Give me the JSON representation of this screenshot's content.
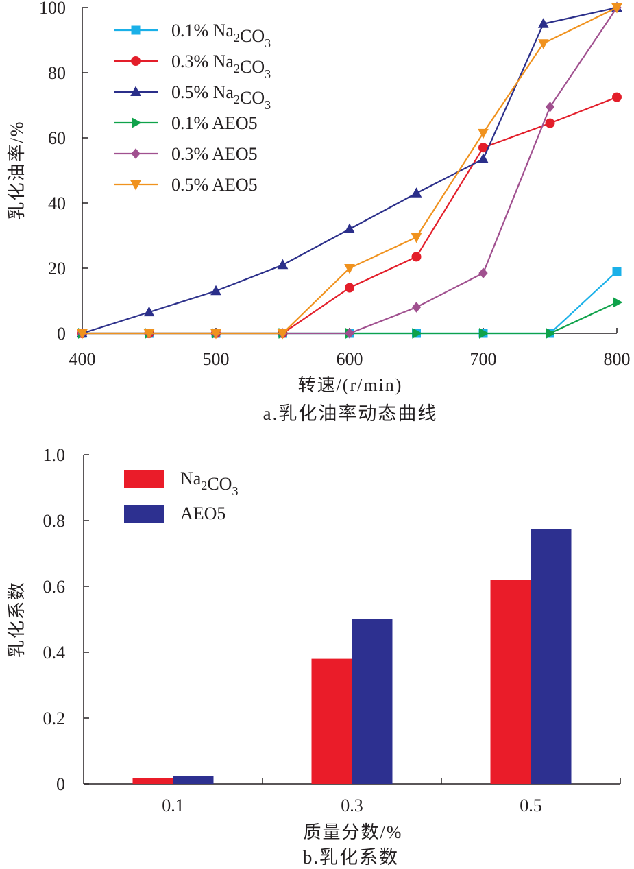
{
  "chart_data": [
    {
      "type": "line",
      "caption": "a.乳化油率动态曲线",
      "xlabel": "转速/(r/min)",
      "ylabel": "乳化油率/%",
      "xlim": [
        400,
        800
      ],
      "ylim": [
        0,
        100
      ],
      "x_ticks": [
        "400",
        "500",
        "600",
        "700",
        "800"
      ],
      "y_ticks": [
        "0",
        "20",
        "40",
        "60",
        "80",
        "100"
      ],
      "grid": false,
      "legend_position": "top-left",
      "series": [
        {
          "name": "0.1% Na2CO3",
          "legend_prefix": "0.1% Na",
          "legend_sub1": "2",
          "legend_mid": "CO",
          "legend_sub2": "3",
          "color": "#1ab0e8",
          "marker": "square",
          "points": [
            [
              400,
              0
            ],
            [
              450,
              0
            ],
            [
              500,
              0
            ],
            [
              550,
              0
            ],
            [
              600,
              0
            ],
            [
              650,
              0
            ],
            [
              700,
              0
            ],
            [
              750,
              0
            ],
            [
              800,
              19
            ]
          ]
        },
        {
          "name": "0.3% Na2CO3",
          "legend_prefix": "0.3% Na",
          "legend_sub1": "2",
          "legend_mid": "CO",
          "legend_sub2": "3",
          "color": "#e31e2a",
          "marker": "circle",
          "points": [
            [
              400,
              0
            ],
            [
              450,
              0
            ],
            [
              500,
              0
            ],
            [
              550,
              0
            ],
            [
              600,
              14
            ],
            [
              650,
              23.5
            ],
            [
              700,
              57
            ],
            [
              750,
              64.5
            ],
            [
              800,
              72.5
            ]
          ]
        },
        {
          "name": "0.5% Na2CO3",
          "legend_prefix": "0.5% Na",
          "legend_sub1": "2",
          "legend_mid": "CO",
          "legend_sub2": "3",
          "color": "#2b2f8a",
          "marker": "triangle-up",
          "points": [
            [
              400,
              0
            ],
            [
              450,
              6.5
            ],
            [
              500,
              13
            ],
            [
              550,
              21
            ],
            [
              600,
              32
            ],
            [
              650,
              43
            ],
            [
              700,
              53.5
            ],
            [
              745,
              95
            ],
            [
              800,
              100
            ]
          ]
        },
        {
          "name": "0.1% AEO5",
          "legend_prefix": "0.1% AEO5",
          "color": "#0fa24a",
          "marker": "triangle-right",
          "points": [
            [
              400,
              0
            ],
            [
              450,
              0
            ],
            [
              500,
              0
            ],
            [
              550,
              0
            ],
            [
              600,
              0
            ],
            [
              650,
              0
            ],
            [
              700,
              0
            ],
            [
              750,
              0
            ],
            [
              800,
              9.5
            ]
          ]
        },
        {
          "name": "0.3% AEO5",
          "legend_prefix": "0.3% AEO5",
          "color": "#a0508f",
          "marker": "diamond",
          "points": [
            [
              400,
              0
            ],
            [
              450,
              0
            ],
            [
              500,
              0
            ],
            [
              550,
              0
            ],
            [
              600,
              0
            ],
            [
              650,
              8
            ],
            [
              700,
              18.5
            ],
            [
              750,
              69.5
            ],
            [
              800,
              100
            ]
          ]
        },
        {
          "name": "0.5% AEO5",
          "legend_prefix": "0.5% AEO5",
          "color": "#f0921e",
          "marker": "triangle-down",
          "points": [
            [
              400,
              0
            ],
            [
              450,
              0
            ],
            [
              500,
              0
            ],
            [
              550,
              0
            ],
            [
              600,
              20
            ],
            [
              650,
              29.5
            ],
            [
              700,
              61.5
            ],
            [
              745,
              89
            ],
            [
              800,
              100
            ]
          ]
        }
      ]
    },
    {
      "type": "bar",
      "caption": "b.乳化系数",
      "xlabel": "质量分数/%",
      "ylabel": "乳化系数",
      "categories": [
        "0.1",
        "0.3",
        "0.5"
      ],
      "ylim": [
        0,
        1.0
      ],
      "y_ticks": [
        "0",
        "0.2",
        "0.4",
        "0.6",
        "0.8",
        "1.0"
      ],
      "grid": false,
      "legend_position": "top-left",
      "series": [
        {
          "name": "Na2CO3",
          "legend_prefix": "Na",
          "legend_sub1": "2",
          "legend_mid": "CO",
          "legend_sub2": "3",
          "color": "#ea1c29",
          "values": [
            0.018,
            0.38,
            0.62
          ]
        },
        {
          "name": "AEO5",
          "legend_prefix": "AEO5",
          "color": "#2d3090",
          "values": [
            0.025,
            0.5,
            0.775
          ]
        }
      ]
    }
  ]
}
